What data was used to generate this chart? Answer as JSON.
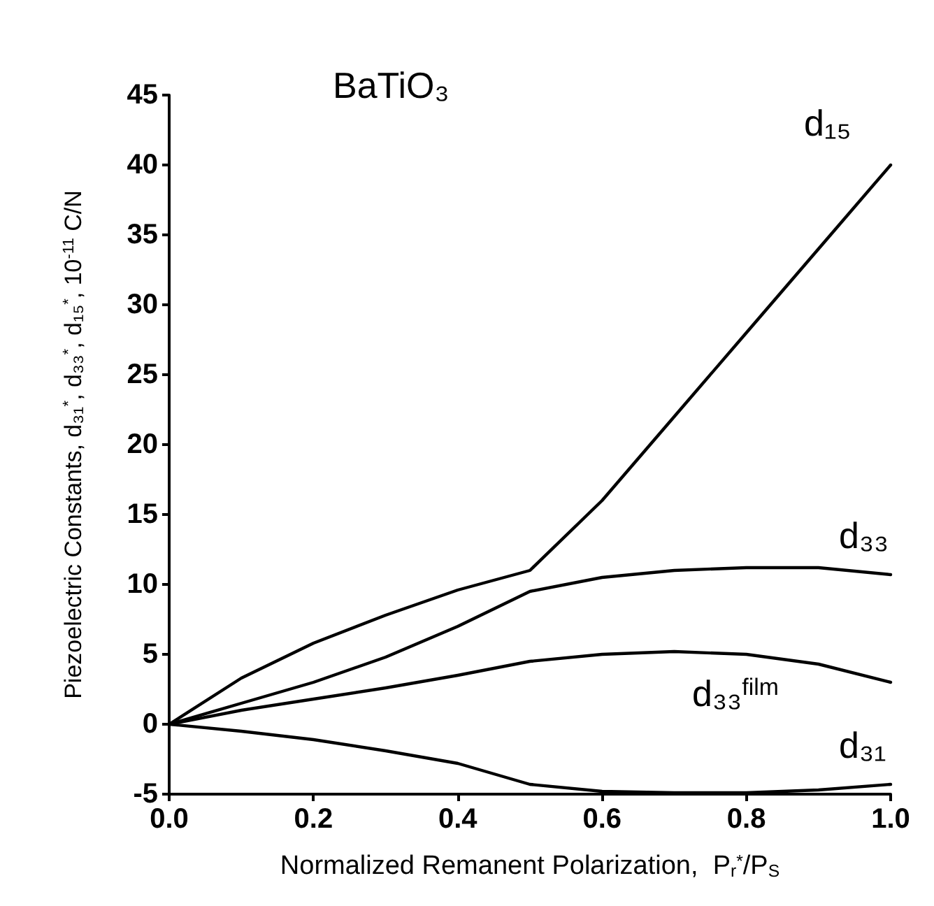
{
  "chart_data": {
    "type": "line",
    "title": "BaTiO₃",
    "xlabel": "Normalized Remanent Polarization,  P$_{r}$$^{*}$/P$_{S}$",
    "ylabel": "Piezoelectric Constants, d₃₁$^{*}$, d₃₃$^{*}$, d₁₅$^{*}$, 10$^{-11}$ C/N",
    "x": [
      0,
      0.1,
      0.2,
      0.3,
      0.4,
      0.5,
      0.6,
      0.7,
      0.8,
      0.9,
      1.0
    ],
    "series": [
      {
        "name": "d₁₅",
        "color": "#000000",
        "values": [
          0,
          3.3,
          5.8,
          7.8,
          9.6,
          11,
          16,
          22,
          28,
          34,
          40
        ]
      },
      {
        "name": "d₃₃",
        "color": "#000000",
        "values": [
          0,
          1.5,
          3,
          4.8,
          7,
          9.5,
          10.5,
          11,
          11.2,
          11.2,
          10.7
        ]
      },
      {
        "name": "d₃₃$^{film}$",
        "color": "#000000",
        "values": [
          0,
          1,
          1.8,
          2.6,
          3.5,
          4.5,
          5,
          5.2,
          5,
          4.3,
          3
        ]
      },
      {
        "name": "d₃₁",
        "color": "#000000",
        "values": [
          0,
          -0.5,
          -1.1,
          -1.9,
          -2.8,
          -4.3,
          -4.8,
          -4.9,
          -4.9,
          -4.7,
          -4.3
        ]
      }
    ],
    "xlim": [
      0,
      1
    ],
    "xticks": [
      {
        "value": 0,
        "label": "0.0"
      },
      {
        "value": 0.2,
        "label": "0.2"
      },
      {
        "value": 0.4,
        "label": "0.4"
      },
      {
        "value": 0.6,
        "label": "0.6"
      },
      {
        "value": 0.8,
        "label": "0.8"
      },
      {
        "value": 1,
        "label": "1.0"
      }
    ],
    "ylim": [
      -5,
      45
    ],
    "yticks": [
      -5,
      0,
      5,
      10,
      15,
      20,
      25,
      30,
      35,
      40,
      45
    ],
    "grid": false,
    "marker": "none",
    "line_style": "solid"
  }
}
